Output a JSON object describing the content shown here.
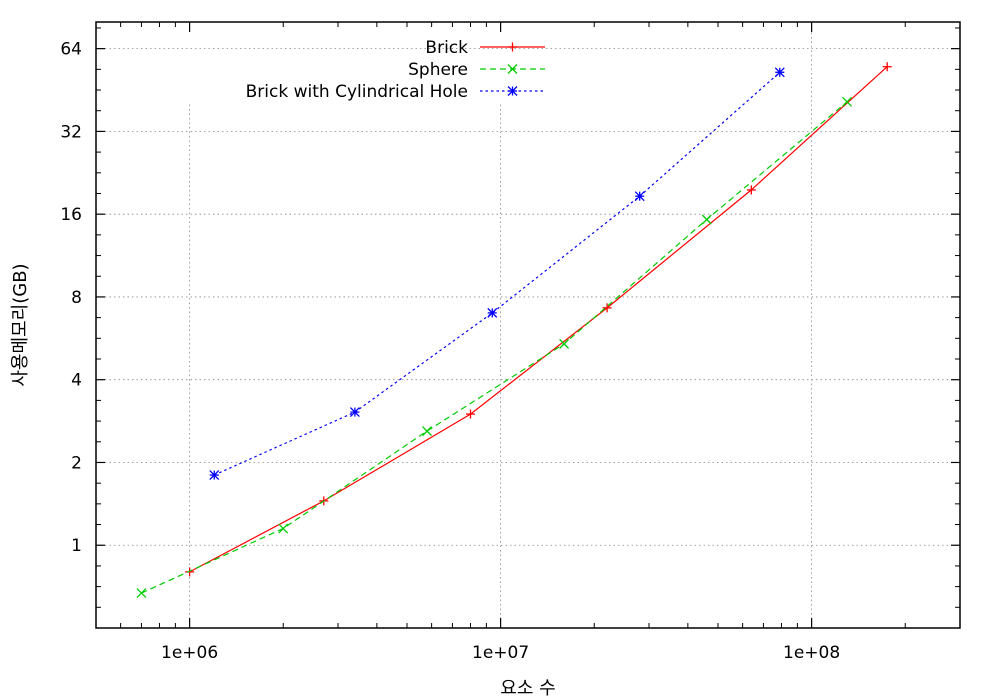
{
  "chart_data": {
    "type": "line",
    "title": "",
    "xlabel": "요소 수",
    "ylabel": "사용메모리(GB)",
    "x_scale": "log",
    "y_scale": "log",
    "xlim": [
      500000,
      300000000
    ],
    "ylim": [
      0.5,
      80
    ],
    "x_ticks": [
      {
        "value": 1000000,
        "label": "1e+06"
      },
      {
        "value": 10000000,
        "label": "1e+07"
      },
      {
        "value": 100000000,
        "label": "1e+08"
      }
    ],
    "y_ticks": [
      {
        "value": 1,
        "label": "1"
      },
      {
        "value": 2,
        "label": "2"
      },
      {
        "value": 4,
        "label": "4"
      },
      {
        "value": 8,
        "label": "8"
      },
      {
        "value": 16,
        "label": "16"
      },
      {
        "value": 32,
        "label": "32"
      },
      {
        "value": 64,
        "label": "64"
      }
    ],
    "grid": true,
    "legend_position": "top-center",
    "series": [
      {
        "name": "Brick",
        "color": "#ff0000",
        "dash": "solid",
        "marker": "plus",
        "points": [
          [
            1000000,
            0.8
          ],
          [
            2700000,
            1.45
          ],
          [
            8000000,
            3.0
          ],
          [
            22000000,
            7.3
          ],
          [
            64000000,
            19.6
          ],
          [
            175000000,
            55
          ]
        ]
      },
      {
        "name": "Sphere",
        "color": "#00cc00",
        "dash": "dashed",
        "marker": "cross",
        "points": [
          [
            700000,
            0.67
          ],
          [
            2000000,
            1.15
          ],
          [
            5800000,
            2.6
          ],
          [
            16000000,
            5.4
          ],
          [
            46000000,
            15.3
          ],
          [
            130000000,
            41
          ]
        ]
      },
      {
        "name": "Brick with Cylindrical Hole",
        "color": "#0000ff",
        "dash": "dotted",
        "marker": "star",
        "points": [
          [
            1200000,
            1.8
          ],
          [
            3400000,
            3.05
          ],
          [
            9400000,
            7.0
          ],
          [
            28000000,
            18.6
          ],
          [
            79000000,
            52.5
          ]
        ]
      }
    ]
  }
}
